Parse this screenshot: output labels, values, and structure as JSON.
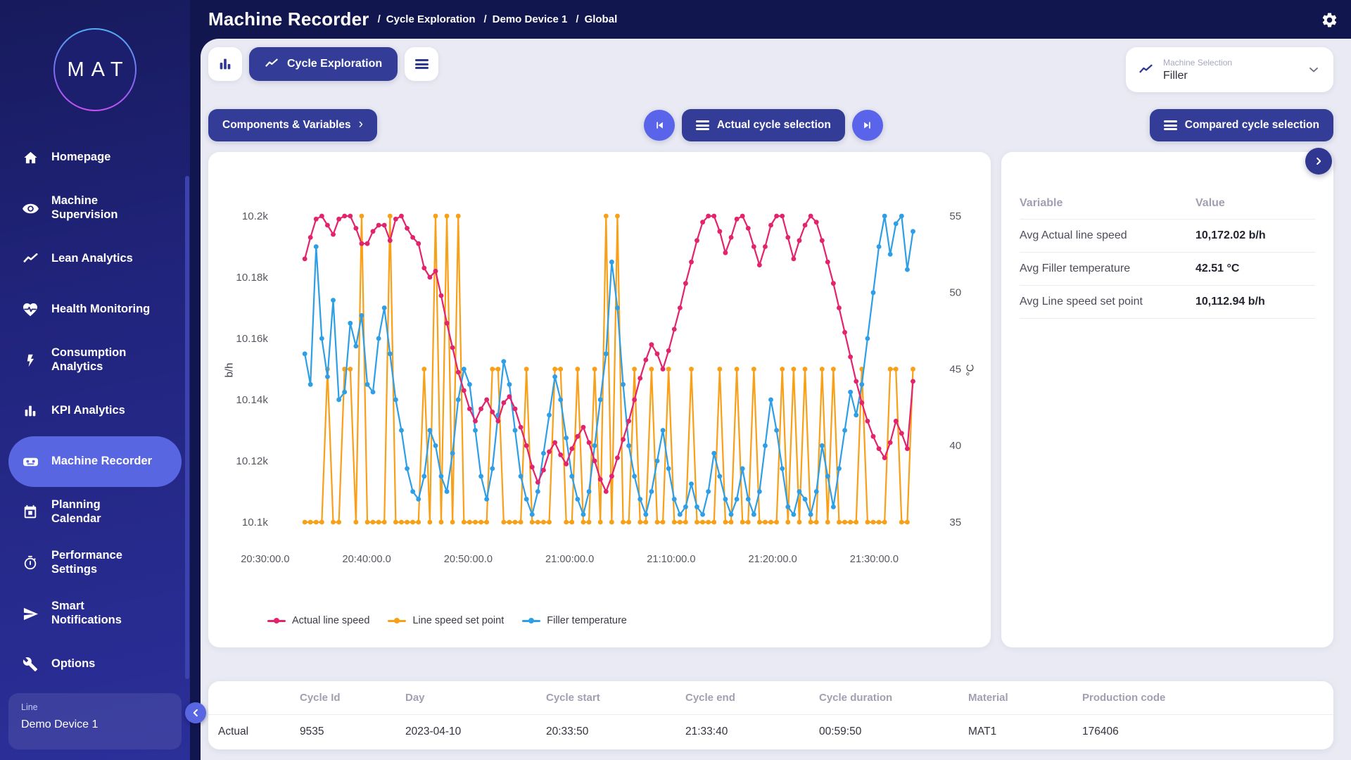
{
  "header": {
    "title": "Machine Recorder",
    "separator": "/",
    "breadcrumbs": [
      "Cycle Exploration",
      "Demo Device 1",
      "Global"
    ]
  },
  "sidebar": {
    "logo": "MAT",
    "items": [
      {
        "label": "Homepage",
        "icon": "home-icon",
        "active": false
      },
      {
        "label": "Machine\nSupervision",
        "icon": "eye-icon",
        "active": false
      },
      {
        "label": "Lean Analytics",
        "icon": "trend-icon",
        "active": false
      },
      {
        "label": "Health Monitoring",
        "icon": "heart-pulse-icon",
        "active": false
      },
      {
        "label": "Consumption\nAnalytics",
        "icon": "bolt-icon",
        "active": false
      },
      {
        "label": "KPI Analytics",
        "icon": "bar-chart-icon",
        "active": false
      },
      {
        "label": "Machine Recorder",
        "icon": "recorder-icon",
        "active": true
      },
      {
        "label": "Planning\nCalendar",
        "icon": "calendar-icon",
        "active": false
      },
      {
        "label": "Performance\nSettings",
        "icon": "stopwatch-icon",
        "active": false
      },
      {
        "label": "Smart\nNotifications",
        "icon": "send-icon",
        "active": false
      },
      {
        "label": "Options",
        "icon": "wrench-icon",
        "active": false
      }
    ],
    "line_panel": {
      "label": "Line",
      "value": "Demo Device 1"
    }
  },
  "toolbar": {
    "cycle_exploration_label": "Cycle Exploration",
    "components_button": "Components & Variables",
    "components_chevron": "›",
    "actual_cycle_button": "Actual cycle selection",
    "compared_cycle_button": "Compared cycle selection",
    "machine_selection": {
      "label": "Machine Selection",
      "value": "Filler"
    }
  },
  "stats_panel": {
    "headers": [
      "Variable",
      "Value"
    ],
    "rows": [
      {
        "variable": "Avg Actual line speed",
        "value": "10,172.02 b/h"
      },
      {
        "variable": "Avg Filler temperature",
        "value": "42.51 °C"
      },
      {
        "variable": "Avg Line speed set point",
        "value": "10,112.94 b/h"
      }
    ]
  },
  "cycle_table": {
    "headers": [
      "Cycle Id",
      "Day",
      "Cycle start",
      "Cycle end",
      "Cycle duration",
      "Material",
      "Production code"
    ],
    "row_label": "Actual",
    "rows": [
      {
        "cycle_id": "9535",
        "day": "2023-04-10",
        "cycle_start": "20:33:50",
        "cycle_end": "21:33:40",
        "cycle_duration": "00:59:50",
        "material": "MAT1",
        "production_code": "176406"
      }
    ]
  },
  "colors": {
    "accent_dark": "#333c96",
    "accent_light": "#5964ea",
    "sidebar_active": "#5866e2",
    "series_pink": "#e2246c",
    "series_orange": "#f9a019",
    "series_blue": "#2e9fe6"
  },
  "chart_data": {
    "type": "line",
    "title": "",
    "grid": false,
    "legend_position": "bottom-left",
    "x_axis": {
      "unit": "time of day",
      "ticks": [
        {
          "t": 0,
          "label": "20:30:00.0"
        },
        {
          "t": 10,
          "label": "20:40:00.0"
        },
        {
          "t": 20,
          "label": "20:50:00.0"
        },
        {
          "t": 30,
          "label": "21:00:00.0"
        },
        {
          "t": 40,
          "label": "21:10:00.0"
        },
        {
          "t": 50,
          "label": "21:20:00.0"
        },
        {
          "t": 60,
          "label": "21:30:00.0"
        }
      ]
    },
    "left_axis": {
      "label": "b/h",
      "min": 10100,
      "max": 10200,
      "ticks": [
        {
          "v": 10100,
          "label": "10.1k"
        },
        {
          "v": 10120,
          "label": "10.12k"
        },
        {
          "v": 10140,
          "label": "10.14k"
        },
        {
          "v": 10160,
          "label": "10.16k"
        },
        {
          "v": 10180,
          "label": "10.18k"
        },
        {
          "v": 10200,
          "label": "10.2k"
        }
      ]
    },
    "right_axis": {
      "label": "°C",
      "min": 35,
      "max": 55,
      "ticks": [
        {
          "v": 35,
          "label": "35"
        },
        {
          "v": 40,
          "label": "40"
        },
        {
          "v": 45,
          "label": "45"
        },
        {
          "v": 50,
          "label": "50"
        },
        {
          "v": 55,
          "label": "55"
        }
      ]
    },
    "sample_t0_min": 3.9,
    "sample_dt_min": 0.56,
    "series": [
      {
        "name": "Actual line speed",
        "color": "#e2246c",
        "axis": "left",
        "unit": "b/h",
        "values": [
          10186,
          10193,
          10199,
          10200,
          10197,
          10194,
          10199,
          10200,
          10200,
          10196,
          10191,
          10191,
          10195,
          10197,
          10197,
          10192,
          10199,
          10200,
          10196,
          10193,
          10191,
          10183,
          10180,
          10182,
          10174,
          10165,
          10157,
          10149,
          10143,
          10137,
          10133,
          10137,
          10140,
          10136,
          10133,
          10139,
          10141,
          10137,
          10131,
          10125,
          10118,
          10113,
          10117,
          10123,
          10126,
          10122,
          10119,
          10124,
          10128,
          10131,
          10126,
          10120,
          10114,
          10110,
          10115,
          10121,
          10127,
          10133,
          10140,
          10147,
          10153,
          10158,
          10155,
          10150,
          10156,
          10163,
          10170,
          10178,
          10185,
          10192,
          10198,
          10200,
          10200,
          10195,
          10188,
          10193,
          10199,
          10200,
          10196,
          10190,
          10184,
          10190,
          10197,
          10200,
          10200,
          10193,
          10186,
          10192,
          10197,
          10200,
          10198,
          10192,
          10185,
          10178,
          10170,
          10162,
          10154,
          10146,
          10139,
          10133,
          10128,
          10124,
          10121,
          10126,
          10133,
          10129,
          10124,
          10146
        ]
      },
      {
        "name": "Line speed set point",
        "color": "#f9a019",
        "axis": "left",
        "unit": "b/h",
        "values": [
          10100,
          10100,
          10100,
          10100,
          10150,
          10100,
          10100,
          10150,
          10150,
          10100,
          10200,
          10100,
          10100,
          10100,
          10100,
          10200,
          10100,
          10100,
          10100,
          10100,
          10100,
          10150,
          10100,
          10200,
          10100,
          10200,
          10100,
          10200,
          10100,
          10100,
          10100,
          10100,
          10100,
          10150,
          10150,
          10100,
          10100,
          10100,
          10100,
          10150,
          10100,
          10100,
          10100,
          10100,
          10150,
          10150,
          10100,
          10100,
          10150,
          10100,
          10100,
          10150,
          10100,
          10200,
          10100,
          10200,
          10100,
          10100,
          10150,
          10100,
          10100,
          10150,
          10100,
          10100,
          10150,
          10100,
          10100,
          10100,
          10150,
          10100,
          10100,
          10100,
          10100,
          10150,
          10100,
          10100,
          10150,
          10100,
          10100,
          10150,
          10100,
          10100,
          10100,
          10100,
          10150,
          10100,
          10150,
          10100,
          10150,
          10100,
          10100,
          10150,
          10100,
          10150,
          10100,
          10100,
          10100,
          10100,
          10150,
          10100,
          10100,
          10100,
          10100,
          10150,
          10150,
          10100,
          10100,
          10150
        ]
      },
      {
        "name": "Filler temperature",
        "color": "#2e9fe6",
        "axis": "right",
        "unit": "°C",
        "values": [
          46,
          44,
          53,
          47,
          44.5,
          49.5,
          43,
          43.5,
          48,
          46.5,
          48.5,
          44,
          43.5,
          47,
          49,
          46,
          43,
          41,
          38.5,
          37,
          36.5,
          38,
          41,
          40,
          38,
          37,
          39.5,
          43,
          45,
          44,
          41,
          38,
          36.5,
          38.5,
          42,
          45.5,
          44,
          41,
          38,
          36.5,
          35.5,
          37,
          39.5,
          42,
          44.5,
          43,
          40.5,
          38,
          36.5,
          35.5,
          37,
          40,
          43,
          46,
          52,
          49,
          44,
          40,
          38,
          36.5,
          35.5,
          37,
          39,
          41,
          38.5,
          36.5,
          35.5,
          36,
          37.5,
          36,
          35.5,
          37,
          39.5,
          38,
          36.5,
          35.5,
          36.5,
          38.5,
          36.5,
          35.5,
          37,
          40,
          43,
          41,
          38.5,
          36,
          35.5,
          37,
          36.5,
          35.5,
          37,
          40,
          38,
          36,
          38.5,
          41,
          43.5,
          42,
          44,
          47,
          50,
          53,
          55,
          52.5,
          54.5,
          55,
          51.5,
          54
        ]
      }
    ]
  }
}
